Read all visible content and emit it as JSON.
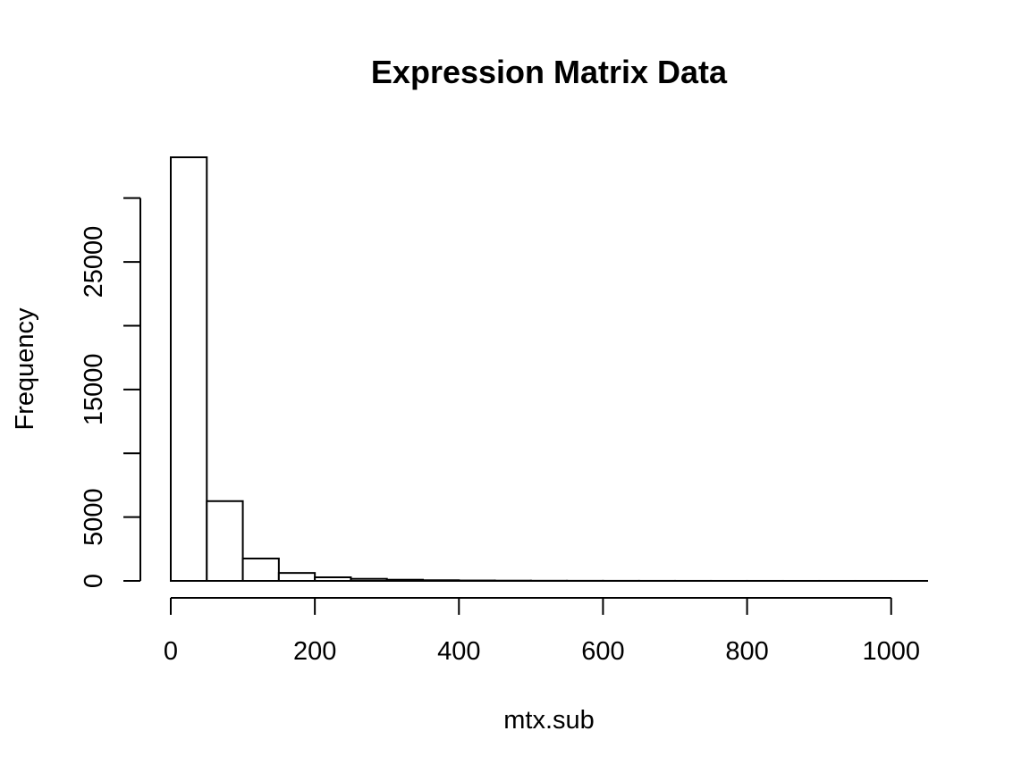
{
  "chart_data": {
    "type": "bar",
    "title": "Expression Matrix Data",
    "xlabel": "mtx.sub",
    "ylabel": "Frequency",
    "bin_edges": [
      0,
      50,
      100,
      150,
      200,
      250,
      300,
      350,
      400,
      450,
      500,
      550,
      600,
      650,
      700,
      750,
      800,
      850,
      900,
      950,
      1000,
      1050
    ],
    "values": [
      33200,
      6250,
      1750,
      620,
      280,
      160,
      90,
      50,
      30,
      20,
      12,
      8,
      6,
      4,
      3,
      2,
      2,
      1,
      1,
      1,
      1
    ],
    "xlim": [
      0,
      1050
    ],
    "ylim": [
      0,
      33200
    ],
    "x_axis_range": [
      0,
      1000
    ],
    "y_axis_range": [
      0,
      30000
    ],
    "x_ticks": [
      0,
      200,
      400,
      600,
      800,
      1000
    ],
    "x_tick_labels": [
      "0",
      "200",
      "400",
      "600",
      "800",
      "1000"
    ],
    "y_ticks": [
      0,
      5000,
      10000,
      15000,
      20000,
      25000,
      30000
    ],
    "y_tick_labels": [
      "0",
      "5000",
      "",
      "15000",
      "",
      "25000",
      ""
    ],
    "grid": false,
    "legend": "none"
  }
}
